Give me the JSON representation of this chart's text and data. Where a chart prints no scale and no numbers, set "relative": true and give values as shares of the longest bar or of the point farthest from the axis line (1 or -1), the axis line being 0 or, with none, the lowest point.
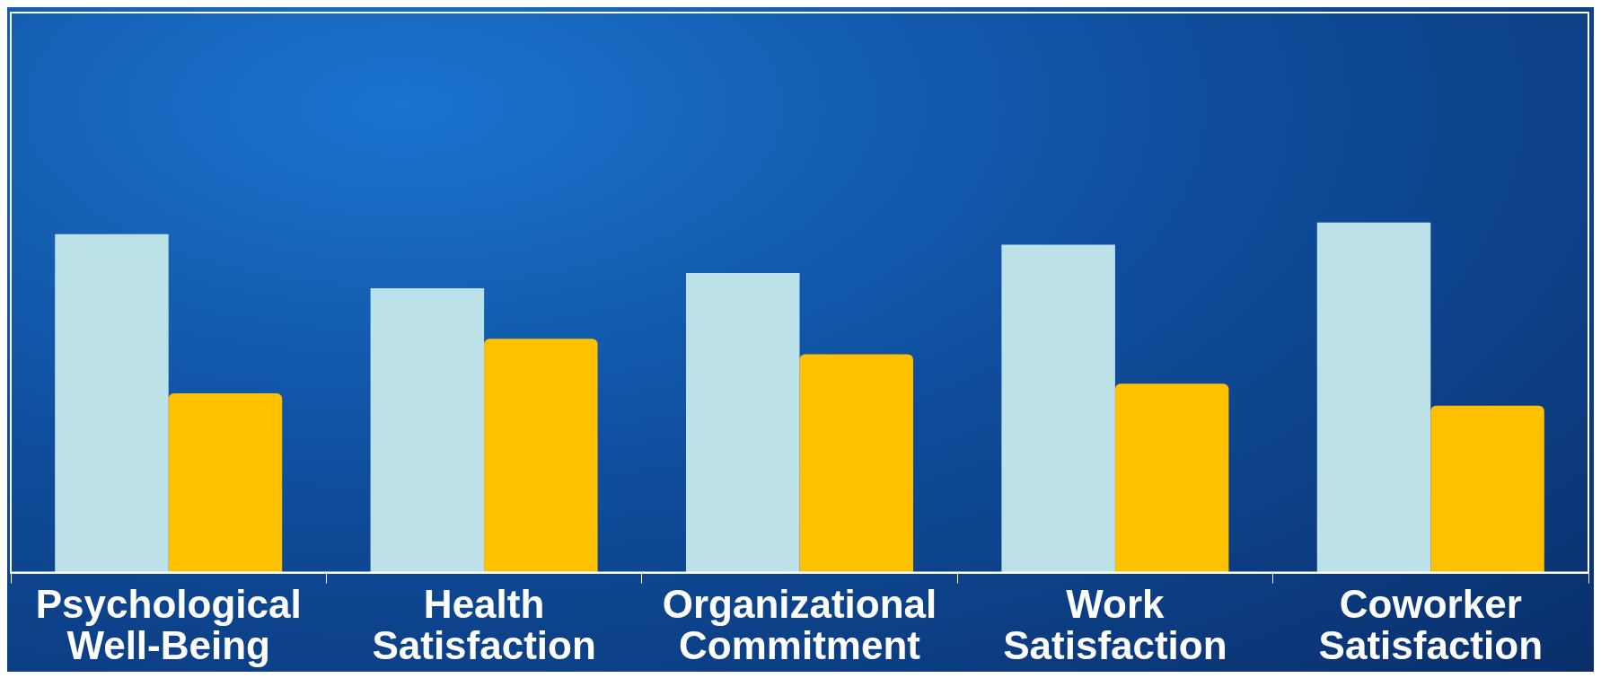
{
  "chart_data": {
    "type": "bar",
    "relative": true,
    "categories": [
      "Psychological Well-Being",
      "Health Satisfaction",
      "Organizational Commitment",
      "Work Satisfaction",
      "Coworker Satisfaction"
    ],
    "series": [
      {
        "color": "#bde1e9",
        "values": [
          0.967,
          0.812,
          0.856,
          0.937,
          1
        ]
      },
      {
        "color": "#ffc000",
        "values": [
          0.512,
          0.668,
          0.624,
          0.54,
          0.477
        ]
      }
    ],
    "grid": false,
    "legend": false
  }
}
